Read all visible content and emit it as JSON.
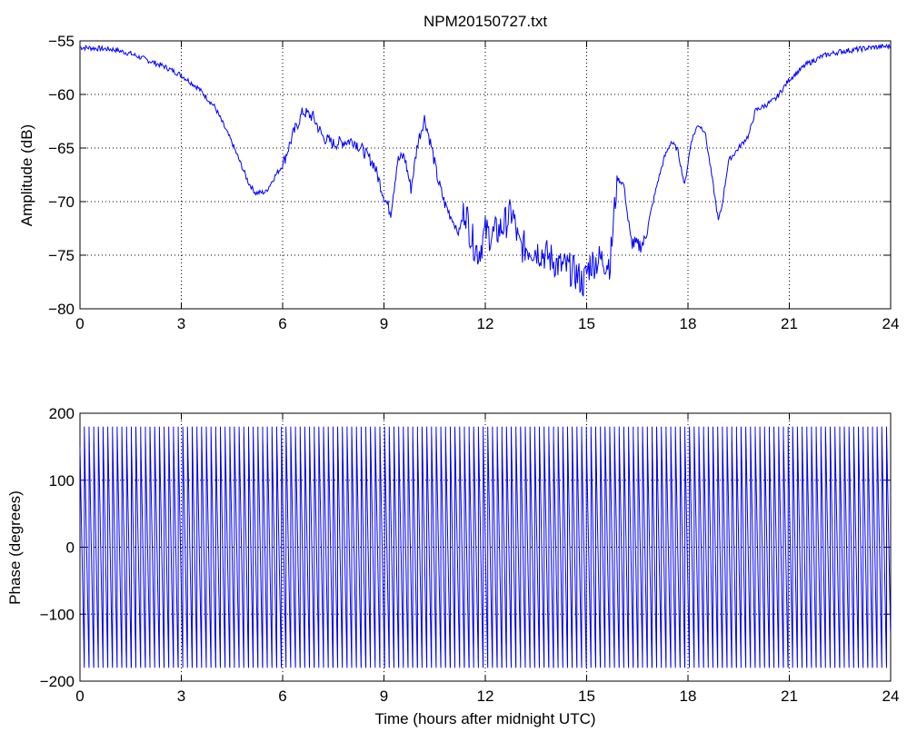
{
  "title": "NPM20150727.txt",
  "colors": {
    "series": "#0000ff",
    "axis": "#000000",
    "grid": "#000000",
    "background": "#ffffff"
  },
  "chart_data": [
    {
      "type": "line",
      "title": "NPM20150727.txt",
      "xlabel": "",
      "ylabel": "Amplitude (dB)",
      "xlim": [
        0,
        24
      ],
      "ylim": [
        -80,
        -55
      ],
      "xticks": [
        0,
        3,
        6,
        9,
        12,
        15,
        18,
        21,
        24
      ],
      "yticks": [
        -55,
        -60,
        -65,
        -70,
        -75,
        -80
      ],
      "xtick_labels": [
        "0",
        "3",
        "6",
        "9",
        "12",
        "15",
        "18",
        "21",
        "24"
      ],
      "ytick_labels": [
        "−55",
        "−60",
        "−65",
        "−70",
        "−75",
        "−80"
      ],
      "grid": true,
      "series": [
        {
          "x": [
            0,
            0.5,
            1,
            1.5,
            2,
            2.5,
            3,
            3.5,
            4,
            4.5,
            5,
            5.2,
            5.5,
            5.8,
            6,
            6.3,
            6.6,
            6.9,
            7.2,
            7.5,
            7.8,
            8.1,
            8.4,
            8.7,
            9,
            9.2,
            9.4,
            9.6,
            9.8,
            10,
            10.2,
            10.4,
            10.6,
            10.8,
            11,
            11.2,
            11.4,
            11.6,
            11.8,
            12,
            12.2,
            12.5,
            12.8,
            13,
            13.3,
            13.6,
            13.9,
            14.2,
            14.5,
            14.7,
            14.9,
            15.1,
            15.4,
            15.7,
            15.9,
            16.1,
            16.3,
            16.5,
            16.7,
            16.9,
            17.1,
            17.3,
            17.5,
            17.7,
            17.9,
            18.1,
            18.3,
            18.5,
            18.7,
            18.9,
            19,
            19.2,
            19.5,
            19.8,
            20,
            20.3,
            20.6,
            21,
            21.5,
            22,
            22.5,
            23,
            23.5,
            24
          ],
          "values": [
            -55.6,
            -55.7,
            -55.8,
            -56.2,
            -56.8,
            -57.4,
            -58.2,
            -59.4,
            -61.2,
            -64.5,
            -68.3,
            -69.2,
            -69.1,
            -67.5,
            -66.6,
            -63.8,
            -61.6,
            -62.1,
            -64.0,
            -64.6,
            -64.4,
            -64.3,
            -65.3,
            -66.5,
            -69.5,
            -71.0,
            -66.2,
            -65.7,
            -68.8,
            -64.5,
            -62.2,
            -64.8,
            -68.0,
            -70.2,
            -71.5,
            -73.0,
            -70.6,
            -73.5,
            -74.8,
            -72.8,
            -73.2,
            -72.4,
            -71.0,
            -74.2,
            -74.3,
            -74.6,
            -75.2,
            -76.0,
            -76.3,
            -76.8,
            -77.6,
            -75.8,
            -75.4,
            -75.7,
            -67.8,
            -68.4,
            -73.6,
            -74.2,
            -73.8,
            -71.0,
            -68.2,
            -65.9,
            -64.4,
            -65.2,
            -68.5,
            -64.3,
            -62.8,
            -63.4,
            -67.5,
            -71.8,
            -70.5,
            -66.2,
            -65.0,
            -63.8,
            -61.5,
            -61.0,
            -60.4,
            -58.6,
            -57.2,
            -56.4,
            -56.0,
            -55.8,
            -55.6,
            -55.5
          ]
        }
      ]
    },
    {
      "type": "line",
      "title": "",
      "xlabel": "Time (hours after midnight UTC)",
      "ylabel": "Phase (degrees)",
      "xlim": [
        0,
        24
      ],
      "ylim": [
        -200,
        200
      ],
      "xticks": [
        0,
        3,
        6,
        9,
        12,
        15,
        18,
        21,
        24
      ],
      "yticks": [
        200,
        100,
        0,
        -100,
        -200
      ],
      "xtick_labels": [
        "0",
        "3",
        "6",
        "9",
        "12",
        "15",
        "18",
        "21",
        "24"
      ],
      "ytick_labels": [
        "200",
        "100",
        "0",
        "−100",
        "−200"
      ],
      "grid": true,
      "wrap_range": [
        -180,
        180
      ],
      "wrap_cycles_per_hour": 7.2
    }
  ]
}
